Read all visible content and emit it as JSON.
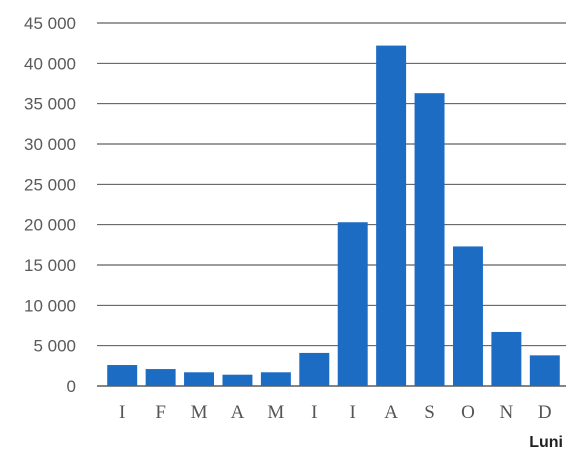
{
  "chart_data": {
    "type": "bar",
    "categories": [
      "I",
      "F",
      "M",
      "A",
      "M",
      "I",
      "I",
      "A",
      "S",
      "O",
      "N",
      "D"
    ],
    "values": [
      2600,
      2100,
      1700,
      1400,
      1700,
      4100,
      20300,
      42200,
      36300,
      17300,
      6700,
      3800
    ],
    "y_ticks": [
      "0",
      "5 000",
      "10 000",
      "15 000",
      "20 000",
      "25 000",
      "30 000",
      "35 000",
      "40 000",
      "45 000"
    ],
    "ylim": [
      0,
      45000
    ],
    "xlabel": "Luni",
    "ylabel": "",
    "title": "",
    "grid": true,
    "bar_color": "#1b6cc2",
    "grid_color": "#3a3a3a"
  }
}
